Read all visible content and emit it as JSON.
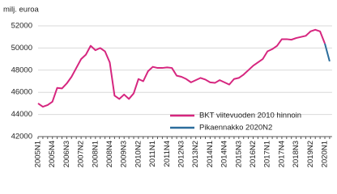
{
  "chart_data": {
    "type": "line",
    "ylabel": "milj. euroa",
    "categories": [
      "2005N1",
      null,
      null,
      "2005N4",
      null,
      null,
      "2006N3",
      null,
      null,
      "2007N2",
      null,
      null,
      "2008N1",
      null,
      null,
      "2008N4",
      null,
      null,
      "2009N3",
      null,
      null,
      "2010N2",
      null,
      null,
      "2011N1",
      null,
      null,
      "2011N4",
      null,
      null,
      "2012N3",
      null,
      null,
      "2013N2",
      null,
      null,
      "2014N1",
      null,
      null,
      "2014N4",
      null,
      null,
      "2015N3",
      null,
      null,
      "2016N2",
      null,
      null,
      "2017N1",
      null,
      null,
      "2017N4",
      null,
      null,
      "2018N3",
      null,
      null,
      "2019N2",
      null,
      null,
      "2020N1",
      null
    ],
    "series": [
      {
        "name": "BKT viitevuoden 2010 hinnoin",
        "color": "#d6267f",
        "values": [
          45000,
          44700,
          44850,
          45150,
          46400,
          46350,
          46800,
          47400,
          48200,
          49000,
          49400,
          50200,
          49800,
          50000,
          49700,
          48700,
          45700,
          45400,
          45800,
          45400,
          45900,
          47200,
          47000,
          47900,
          48300,
          48200,
          48200,
          48250,
          48200,
          47500,
          47400,
          47200,
          46900,
          47100,
          47300,
          47150,
          46900,
          46850,
          47100,
          46900,
          46700,
          47200,
          47300,
          47600,
          48000,
          48400,
          48700,
          49000,
          49700,
          49900,
          50200,
          50800,
          50800,
          50750,
          50900,
          51000,
          51100,
          51500,
          51650,
          51500,
          50400,
          null
        ]
      },
      {
        "name": "Pikaennakko 2020N2",
        "color": "#2b6d9c",
        "values": [
          null,
          null,
          null,
          null,
          null,
          null,
          null,
          null,
          null,
          null,
          null,
          null,
          null,
          null,
          null,
          null,
          null,
          null,
          null,
          null,
          null,
          null,
          null,
          null,
          null,
          null,
          null,
          null,
          null,
          null,
          null,
          null,
          null,
          null,
          null,
          null,
          null,
          null,
          null,
          null,
          null,
          null,
          null,
          null,
          null,
          null,
          null,
          null,
          null,
          null,
          null,
          null,
          null,
          null,
          null,
          null,
          null,
          null,
          null,
          null,
          50400,
          48800
        ]
      }
    ],
    "ylim": [
      42000,
      52000
    ],
    "yticks": [
      42000,
      44000,
      46000,
      48000,
      50000,
      52000
    ],
    "grid": true,
    "legend": "lower right"
  }
}
